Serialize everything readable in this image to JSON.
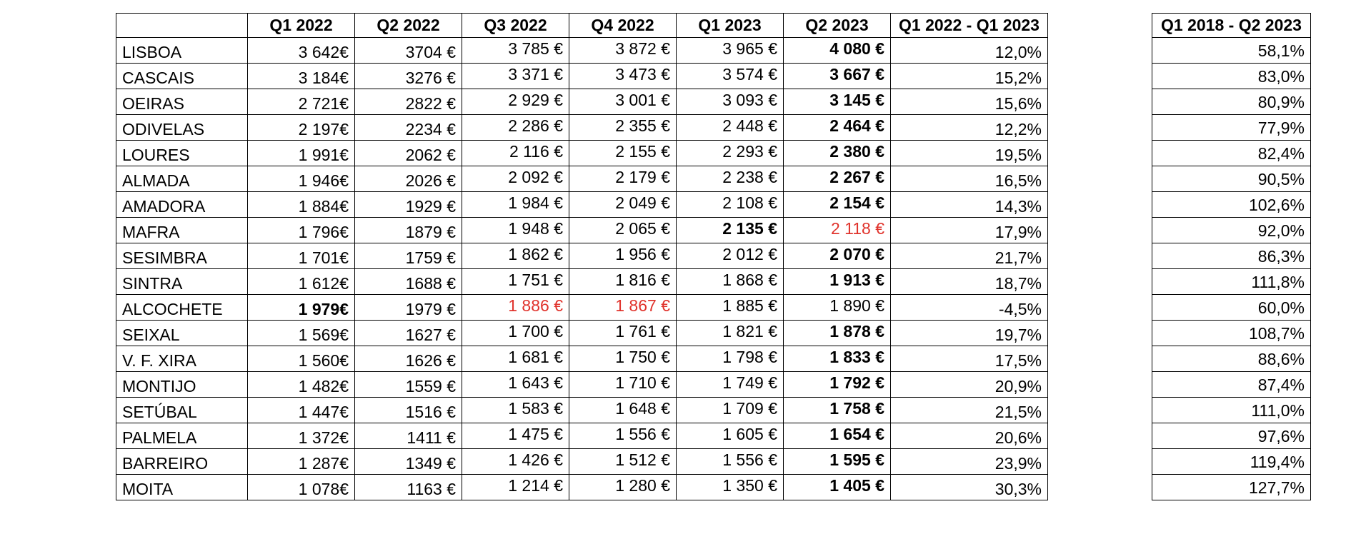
{
  "headers": [
    "Q1 2022",
    "Q2 2022",
    "Q3 2022",
    "Q4 2022",
    "Q1 2023",
    "Q2 2023",
    "Q1 2022 - Q1 2023"
  ],
  "side_header": "Q1 2018 - Q2 2023",
  "colors": {
    "text": "#000000",
    "highlight_red": "#e0332c",
    "border": "#000000"
  },
  "rows": [
    {
      "name": "LISBOA",
      "q1_2022": "3 642€",
      "q2_2022": "3704 €",
      "q3_2022": "3 785 €",
      "q4_2022": "3 872 €",
      "q1_2023": "3 965 €",
      "q2_2023": "4 080 €",
      "change_q1": "12,0%",
      "change_long": "58,1%"
    },
    {
      "name": "CASCAIS",
      "q1_2022": "3 184€",
      "q2_2022": "3276 €",
      "q3_2022": "3 371 €",
      "q4_2022": "3 473 €",
      "q1_2023": "3 574 €",
      "q2_2023": "3 667 €",
      "change_q1": "15,2%",
      "change_long": "83,0%"
    },
    {
      "name": "OEIRAS",
      "q1_2022": "2 721€",
      "q2_2022": "2822 €",
      "q3_2022": "2 929 €",
      "q4_2022": "3 001 €",
      "q1_2023": "3 093 €",
      "q2_2023": "3 145 €",
      "change_q1": "15,6%",
      "change_long": "80,9%"
    },
    {
      "name": "ODIVELAS",
      "q1_2022": "2 197€",
      "q2_2022": "2234 €",
      "q3_2022": "2 286 €",
      "q4_2022": "2 355 €",
      "q1_2023": "2 448 €",
      "q2_2023": "2 464 €",
      "change_q1": "12,2%",
      "change_long": "77,9%"
    },
    {
      "name": "LOURES",
      "q1_2022": "1 991€",
      "q2_2022": "2062 €",
      "q3_2022": "2 116 €",
      "q4_2022": "2 155 €",
      "q1_2023": "2 293 €",
      "q2_2023": "2 380 €",
      "change_q1": "19,5%",
      "change_long": "82,4%"
    },
    {
      "name": "ALMADA",
      "q1_2022": "1 946€",
      "q2_2022": "2026 €",
      "q3_2022": "2 092 €",
      "q4_2022": "2 179 €",
      "q1_2023": "2 238 €",
      "q2_2023": "2 267 €",
      "change_q1": "16,5%",
      "change_long": "90,5%"
    },
    {
      "name": "AMADORA",
      "q1_2022": "1 884€",
      "q2_2022": "1929 €",
      "q3_2022": "1 984 €",
      "q4_2022": "2 049 €",
      "q1_2023": "2 108 €",
      "q2_2023": "2 154 €",
      "change_q1": "14,3%",
      "change_long": "102,6%"
    },
    {
      "name": "MAFRA",
      "q1_2022": "1 796€",
      "q2_2022": "1879 €",
      "q3_2022": "1 948 €",
      "q4_2022": "2 065 €",
      "q1_2023": "2 135 €",
      "q2_2023": "2 118 €",
      "change_q1": "17,9%",
      "change_long": "92,0%"
    },
    {
      "name": "SESIMBRA",
      "q1_2022": "1 701€",
      "q2_2022": "1759 €",
      "q3_2022": "1 862 €",
      "q4_2022": "1 956 €",
      "q1_2023": "2 012 €",
      "q2_2023": "2 070 €",
      "change_q1": "21,7%",
      "change_long": "86,3%"
    },
    {
      "name": "SINTRA",
      "q1_2022": "1 612€",
      "q2_2022": "1688 €",
      "q3_2022": "1 751 €",
      "q4_2022": "1 816 €",
      "q1_2023": "1 868 €",
      "q2_2023": "1 913 €",
      "change_q1": "18,7%",
      "change_long": "111,8%"
    },
    {
      "name": "ALCOCHETE",
      "q1_2022": "1 979€",
      "q2_2022": "1979 €",
      "q3_2022": "1 886 €",
      "q4_2022": "1 867 €",
      "q1_2023": "1 885 €",
      "q2_2023": "1 890 €",
      "change_q1": "-4,5%",
      "change_long": "60,0%"
    },
    {
      "name": "SEIXAL",
      "q1_2022": "1 569€",
      "q2_2022": "1627 €",
      "q3_2022": "1 700 €",
      "q4_2022": "1 761 €",
      "q1_2023": "1 821 €",
      "q2_2023": "1 878 €",
      "change_q1": "19,7%",
      "change_long": "108,7%"
    },
    {
      "name": "V. F. XIRA",
      "q1_2022": "1 560€",
      "q2_2022": "1626 €",
      "q3_2022": "1 681 €",
      "q4_2022": "1 750 €",
      "q1_2023": "1 798 €",
      "q2_2023": "1 833 €",
      "change_q1": "17,5%",
      "change_long": "88,6%"
    },
    {
      "name": "MONTIJO",
      "q1_2022": "1 482€",
      "q2_2022": "1559 €",
      "q3_2022": "1 643 €",
      "q4_2022": "1 710 €",
      "q1_2023": "1 749 €",
      "q2_2023": "1 792 €",
      "change_q1": "20,9%",
      "change_long": "87,4%"
    },
    {
      "name": "SETÚBAL",
      "q1_2022": "1 447€",
      "q2_2022": "1516 €",
      "q3_2022": "1 583 €",
      "q4_2022": "1 648 €",
      "q1_2023": "1 709 €",
      "q2_2023": "1 758 €",
      "change_q1": "21,5%",
      "change_long": "111,0%"
    },
    {
      "name": "PALMELA",
      "q1_2022": "1 372€",
      "q2_2022": "1411 €",
      "q3_2022": "1 475 €",
      "q4_2022": "1 556 €",
      "q1_2023": "1 605 €",
      "q2_2023": "1 654 €",
      "change_q1": "20,6%",
      "change_long": "97,6%"
    },
    {
      "name": "BARREIRO",
      "q1_2022": "1 287€",
      "q2_2022": "1349 €",
      "q3_2022": "1 426 €",
      "q4_2022": "1 512 €",
      "q1_2023": "1 556 €",
      "q2_2023": "1 595 €",
      "change_q1": "23,9%",
      "change_long": "119,4%"
    },
    {
      "name": "MOITA",
      "q1_2022": "1 078€",
      "q2_2022": "1163 €",
      "q3_2022": "1 214 €",
      "q4_2022": "1 280 €",
      "q1_2023": "1 350 €",
      "q2_2023": "1 405 €",
      "change_q1": "30,3%",
      "change_long": "127,7%"
    }
  ]
}
